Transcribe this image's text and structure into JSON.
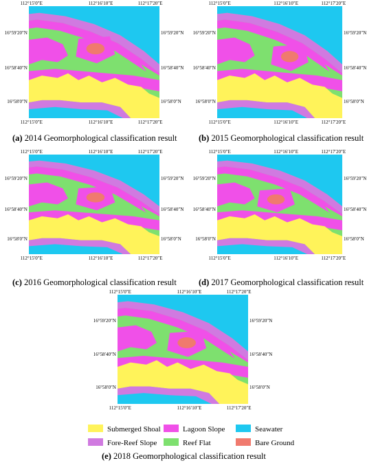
{
  "panels": [
    {
      "id": "a",
      "year": "2014",
      "caption_letter": "(a)",
      "caption_text": " 2014 Geomorphological classification result",
      "lon_top": [
        "112°15′0″E",
        "112°16′10″E",
        "112°17′20″E"
      ],
      "lon_bottom": [
        "112°15′0″E",
        "112°16′10″E",
        "112°17′20″E"
      ],
      "lat_left": [
        "16°59′20″N",
        "16°58′40″N",
        "16°58′0″N"
      ],
      "lat_right": [
        "16°59′20″N",
        "16°58′40″N",
        "16°58′0″N"
      ]
    },
    {
      "id": "b",
      "year": "2015",
      "caption_letter": "(b)",
      "caption_text": " 2015 Geomorphological classification result",
      "lon_top": [
        "112°15′0″E",
        "112°16′10″E",
        "112°17′20″E"
      ],
      "lon_bottom": [
        "112°15′0″E",
        "112°16′10″E",
        "112°17′20″E"
      ],
      "lat_left": [
        "16°59′20″N",
        "16°58′40″N",
        "16°58′0″N"
      ],
      "lat_right": [
        "16°59′20″N",
        "16°58′40″N",
        "16°58′0″N"
      ]
    },
    {
      "id": "c",
      "year": "2016",
      "caption_letter": "(c)",
      "caption_text": " 2016 Geomorphological classification result",
      "lon_top": [
        "112°15′0″E",
        "112°16′10″E",
        "112°17′20″E"
      ],
      "lon_bottom": [
        "112°15′0″E",
        "112°16′10″E",
        "112°17′20″E"
      ],
      "lat_left": [
        "16°59′20″N",
        "16°58′40″N",
        "16°58′0″N"
      ],
      "lat_right": [
        "16°59′20″N",
        "16°58′40″N",
        "16°58′0″N"
      ]
    },
    {
      "id": "d",
      "year": "2017",
      "caption_letter": "(d)",
      "caption_text": " 2017 Geomorphological classification result",
      "lon_top": [
        "112°15′0″E",
        "112°16′10″E",
        "112°17′20″E"
      ],
      "lon_bottom": [
        "112°15′0″E",
        "112°16′10″E",
        "112°17′20″E"
      ],
      "lat_left": [
        "16°59′20″N",
        "16°58′40″N",
        "16°58′0″N"
      ],
      "lat_right": [
        "16°59′20″N",
        "16°58′40″N",
        "16°58′0″N"
      ]
    },
    {
      "id": "e",
      "year": "2018",
      "caption_letter": "(e)",
      "caption_text": " 2018 Geomorphological classification result",
      "lon_top": [
        "112°15′0″E",
        "112°16′10″E",
        "112°17′20″E"
      ],
      "lon_bottom": [
        "112°15′0″E",
        "112°16′10″E",
        "112°17′20″E"
      ],
      "lat_left": [
        "16°59′20″N",
        "16°58′40″N",
        "16°58′0″N"
      ],
      "lat_right": [
        "16°59′20″N",
        "16°58′40″N",
        "16°58′0″N"
      ]
    }
  ],
  "legend": [
    {
      "label": "Submerged Shoal",
      "color": "#fff35a"
    },
    {
      "label": "Lagoon Slope",
      "color": "#f050e8"
    },
    {
      "label": "Seawater",
      "color": "#1ec8f0"
    },
    {
      "label": "Fore-Reef Slope",
      "color": "#d07ae0"
    },
    {
      "label": "Reef Flat",
      "color": "#7ee06f"
    },
    {
      "label": "Bare Ground",
      "color": "#f07a6e"
    }
  ]
}
